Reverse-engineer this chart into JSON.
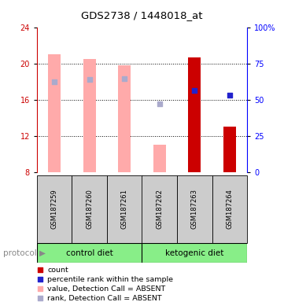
{
  "title": "GDS2738 / 1448018_at",
  "samples": [
    "GSM187259",
    "GSM187260",
    "GSM187261",
    "GSM187262",
    "GSM187263",
    "GSM187264"
  ],
  "group_labels": [
    "control diet",
    "ketogenic diet"
  ],
  "ylim_left": [
    8,
    24
  ],
  "ylim_right": [
    0,
    100
  ],
  "yticks_left": [
    8,
    12,
    16,
    20,
    24
  ],
  "yticks_right": [
    0,
    25,
    50,
    75,
    100
  ],
  "ytick_right_labels": [
    "0",
    "25",
    "50",
    "75",
    "100%"
  ],
  "bar_values": [
    21.0,
    20.5,
    19.8,
    11.0,
    20.7,
    13.0
  ],
  "bar_colors": [
    "#ffaaaa",
    "#ffaaaa",
    "#ffaaaa",
    "#ffaaaa",
    "#cc0000",
    "#cc0000"
  ],
  "rank_dots": [
    18.0,
    18.2,
    18.3,
    15.5,
    17.0,
    16.5
  ],
  "rank_dot_colors": [
    "#aaaacc",
    "#aaaacc",
    "#aaaacc",
    "#aaaacc",
    "#2222cc",
    "#2222cc"
  ],
  "rank_dot_sizes": [
    18,
    18,
    18,
    18,
    25,
    25
  ],
  "group_color": "#88ee88",
  "sample_bg_color": "#cccccc",
  "bar_bottom": 8,
  "bar_width": 0.35,
  "legend_items": [
    {
      "color": "#cc0000",
      "label": "count"
    },
    {
      "color": "#2222cc",
      "label": "percentile rank within the sample"
    },
    {
      "color": "#ffaaaa",
      "label": "value, Detection Call = ABSENT"
    },
    {
      "color": "#aaaacc",
      "label": "rank, Detection Call = ABSENT"
    }
  ]
}
